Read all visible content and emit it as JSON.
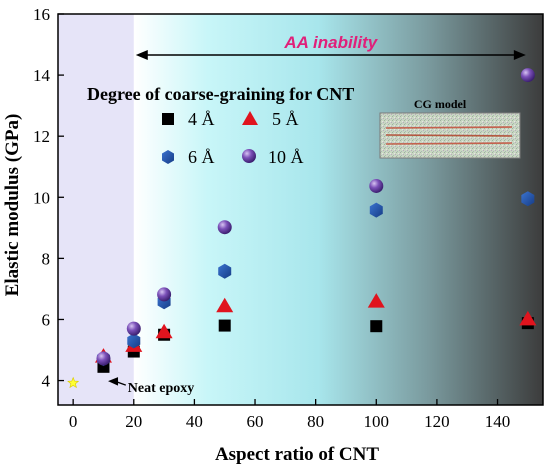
{
  "chart_data": {
    "type": "scatter",
    "xlabel": "Aspect ratio of CNT",
    "ylabel": "Elastic modulus (GPa)",
    "xlim": [
      -5,
      155
    ],
    "ylim": [
      3.2,
      16
    ],
    "xticks": [
      0,
      20,
      40,
      60,
      80,
      100,
      120,
      140
    ],
    "yticks": [
      4,
      6,
      8,
      10,
      12,
      14,
      16
    ],
    "grid": false,
    "legend_title": "Degree of coarse-graining for CNT",
    "legend_position": "upper-left inside",
    "series": [
      {
        "name": "4 Å",
        "marker": "square",
        "color": "#000000",
        "points": [
          [
            10,
            4.45
          ],
          [
            20,
            4.95
          ],
          [
            30,
            5.5
          ],
          [
            50,
            5.8
          ],
          [
            100,
            5.78
          ],
          [
            150,
            5.88
          ]
        ]
      },
      {
        "name": "5 Å",
        "marker": "triangle",
        "color": "#e0141e",
        "points": [
          [
            10,
            4.8
          ],
          [
            20,
            5.15
          ],
          [
            30,
            5.6
          ],
          [
            50,
            6.45
          ],
          [
            100,
            6.6
          ],
          [
            150,
            6.02
          ]
        ]
      },
      {
        "name": "6 Å",
        "marker": "hexagon",
        "color": "#1f4ea8",
        "points": [
          [
            10,
            4.72
          ],
          [
            20,
            5.3
          ],
          [
            30,
            6.58
          ],
          [
            50,
            7.58
          ],
          [
            100,
            9.58
          ],
          [
            150,
            9.95
          ]
        ]
      },
      {
        "name": "10 Å",
        "marker": "sphere",
        "color": "#6a3fa6",
        "points": [
          [
            10,
            4.72
          ],
          [
            20,
            5.7
          ],
          [
            30,
            6.82
          ],
          [
            50,
            9.02
          ],
          [
            100,
            10.37
          ],
          [
            150,
            14.0
          ]
        ]
      }
    ],
    "reference_point": {
      "label": "Neat epoxy",
      "x": 0,
      "y": 3.92,
      "color": "#ffff33"
    },
    "region_annotation": {
      "label": "AA inability",
      "x_start": 20,
      "x_end": 150,
      "color": "#e0207a"
    },
    "inset_label": "CG model"
  }
}
